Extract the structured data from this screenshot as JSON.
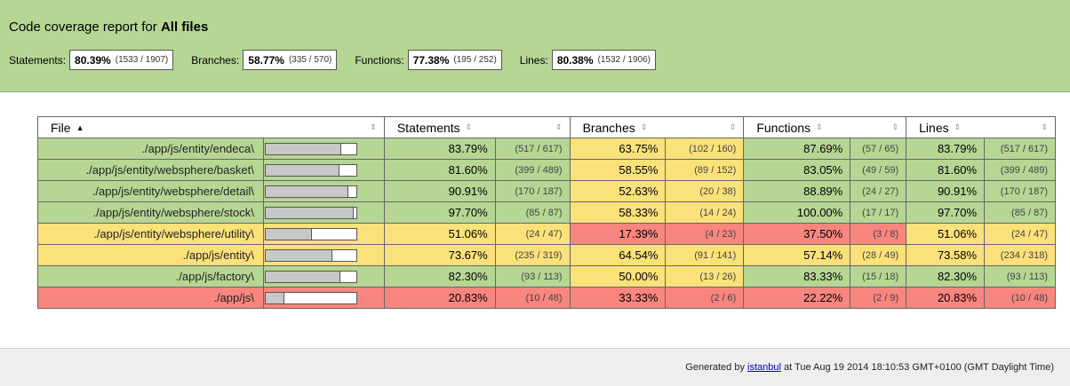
{
  "header": {
    "title_prefix": "Code coverage report for",
    "title_target": "All files",
    "metrics": [
      {
        "label": "Statements:",
        "pct": "80.39%",
        "frac": "(1533 / 1907)"
      },
      {
        "label": "Branches:",
        "pct": "58.77%",
        "frac": "(335 / 570)"
      },
      {
        "label": "Functions:",
        "pct": "77.38%",
        "frac": "(195 / 252)"
      },
      {
        "label": "Lines:",
        "pct": "80.38%",
        "frac": "(1532 / 1906)"
      }
    ]
  },
  "table": {
    "columns": [
      "File",
      "Statements",
      "Branches",
      "Functions",
      "Lines"
    ],
    "rows": [
      {
        "file": "./app/js/entity/endeca\\",
        "bar": 0.8379,
        "rowcolor": "g",
        "st": [
          "83.79%",
          "(517 / 617)",
          "g"
        ],
        "br": [
          "63.75%",
          "(102 / 160)",
          "y"
        ],
        "fn": [
          "87.69%",
          "(57 / 65)",
          "g"
        ],
        "ln": [
          "83.79%",
          "(517 / 617)",
          "g"
        ]
      },
      {
        "file": "./app/js/entity/websphere/basket\\",
        "bar": 0.816,
        "rowcolor": "g",
        "st": [
          "81.60%",
          "(399 / 489)",
          "g"
        ],
        "br": [
          "58.55%",
          "(89 / 152)",
          "y"
        ],
        "fn": [
          "83.05%",
          "(49 / 59)",
          "g"
        ],
        "ln": [
          "81.60%",
          "(399 / 489)",
          "g"
        ]
      },
      {
        "file": "./app/js/entity/websphere/detail\\",
        "bar": 0.9091,
        "rowcolor": "g",
        "st": [
          "90.91%",
          "(170 / 187)",
          "g"
        ],
        "br": [
          "52.63%",
          "(20 / 38)",
          "y"
        ],
        "fn": [
          "88.89%",
          "(24 / 27)",
          "g"
        ],
        "ln": [
          "90.91%",
          "(170 / 187)",
          "g"
        ]
      },
      {
        "file": "./app/js/entity/websphere/stock\\",
        "bar": 0.977,
        "rowcolor": "g",
        "st": [
          "97.70%",
          "(85 / 87)",
          "g"
        ],
        "br": [
          "58.33%",
          "(14 / 24)",
          "y"
        ],
        "fn": [
          "100.00%",
          "(17 / 17)",
          "g"
        ],
        "ln": [
          "97.70%",
          "(85 / 87)",
          "g"
        ]
      },
      {
        "file": "./app/js/entity/websphere/utility\\",
        "bar": 0.5106,
        "rowcolor": "y",
        "st": [
          "51.06%",
          "(24 / 47)",
          "y"
        ],
        "br": [
          "17.39%",
          "(4 / 23)",
          "r"
        ],
        "fn": [
          "37.50%",
          "(3 / 8)",
          "r"
        ],
        "ln": [
          "51.06%",
          "(24 / 47)",
          "y"
        ]
      },
      {
        "file": "./app/js/entity\\",
        "bar": 0.7367,
        "rowcolor": "y",
        "st": [
          "73.67%",
          "(235 / 319)",
          "y"
        ],
        "br": [
          "64.54%",
          "(91 / 141)",
          "y"
        ],
        "fn": [
          "57.14%",
          "(28 / 49)",
          "y"
        ],
        "ln": [
          "73.58%",
          "(234 / 318)",
          "y"
        ]
      },
      {
        "file": "./app/js/factory\\",
        "bar": 0.823,
        "rowcolor": "g",
        "st": [
          "82.30%",
          "(93 / 113)",
          "g"
        ],
        "br": [
          "50.00%",
          "(13 / 26)",
          "y"
        ],
        "fn": [
          "83.33%",
          "(15 / 18)",
          "g"
        ],
        "ln": [
          "82.30%",
          "(93 / 113)",
          "g"
        ]
      },
      {
        "file": "./app/js\\",
        "bar": 0.2083,
        "rowcolor": "r",
        "st": [
          "20.83%",
          "(10 / 48)",
          "r"
        ],
        "br": [
          "33.33%",
          "(2 / 6)",
          "r"
        ],
        "fn": [
          "22.22%",
          "(2 / 9)",
          "r"
        ],
        "ln": [
          "20.83%",
          "(10 / 48)",
          "r"
        ]
      }
    ]
  },
  "footer": {
    "generated_by": "Generated by",
    "link_text": "istanbul",
    "suffix": "at Tue Aug 19 2014 18:10:53 GMT+0100 (GMT Daylight Time)"
  },
  "colors": {
    "high": "#b6d694",
    "medium": "#fbe17a",
    "low": "#f7867e"
  }
}
